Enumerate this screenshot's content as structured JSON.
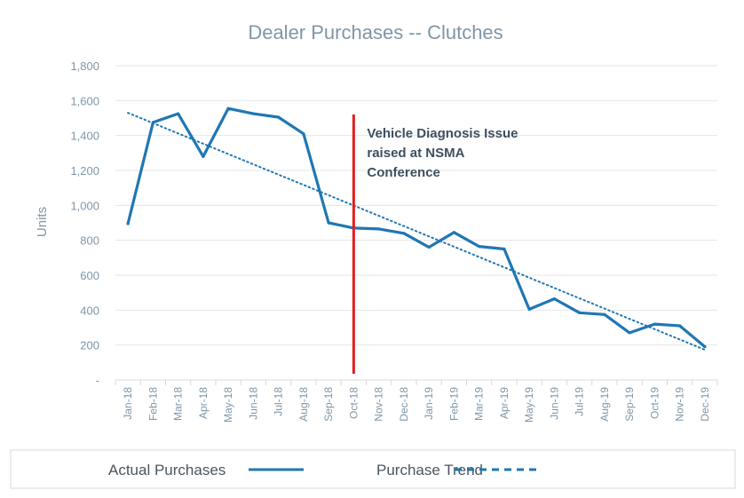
{
  "chart_data": {
    "type": "line",
    "title": "Dealer Purchases -- Clutches",
    "ylabel": "Units",
    "xlabel": "",
    "ylim": [
      0,
      1800
    ],
    "yticks": [
      {
        "value": 0,
        "label": "-"
      },
      {
        "value": 200,
        "label": "200"
      },
      {
        "value": 400,
        "label": "400"
      },
      {
        "value": 600,
        "label": "600"
      },
      {
        "value": 800,
        "label": "800"
      },
      {
        "value": 1000,
        "label": "1,000"
      },
      {
        "value": 1200,
        "label": "1,200"
      },
      {
        "value": 1400,
        "label": "1,400"
      },
      {
        "value": 1600,
        "label": "1,600"
      },
      {
        "value": 1800,
        "label": "1,800"
      }
    ],
    "grid": true,
    "legend_position": "bottom",
    "categories": [
      "Jan-18",
      "Feb-18",
      "Mar-18",
      "Apr-18",
      "May-18",
      "Jun-18",
      "Jul-18",
      "Aug-18",
      "Sep-18",
      "Oct-18",
      "Nov-18",
      "Dec-18",
      "Jan-19",
      "Feb-19",
      "Mar-19",
      "Apr-19",
      "May-19",
      "Jun-19",
      "Jul-19",
      "Aug-19",
      "Sep-19",
      "Oct-19",
      "Nov-19",
      "Dec-19"
    ],
    "series": [
      {
        "name": "Actual Purchases",
        "color": "#1f77b4",
        "style": "solid",
        "values": [
          895,
          1475,
          1525,
          1280,
          1555,
          1525,
          1505,
          1410,
          900,
          870,
          865,
          840,
          760,
          845,
          765,
          750,
          405,
          465,
          385,
          375,
          270,
          320,
          310,
          190
        ]
      },
      {
        "name": "Purchase Trend",
        "color": "#1f77b4",
        "style": "dotted",
        "trend": "linear",
        "values": [
          1530,
          1471,
          1412,
          1353,
          1294,
          1235,
          1176,
          1117,
          1058,
          999,
          940,
          881,
          822,
          763,
          704,
          645,
          586,
          527,
          468,
          409,
          350,
          291,
          232,
          173
        ]
      }
    ],
    "annotations": [
      {
        "type": "vline",
        "x": "Oct-18",
        "color": "#e02020",
        "text": [
          "Vehicle Diagnosis Issue",
          "raised at NSMA",
          "Conference"
        ]
      }
    ]
  }
}
